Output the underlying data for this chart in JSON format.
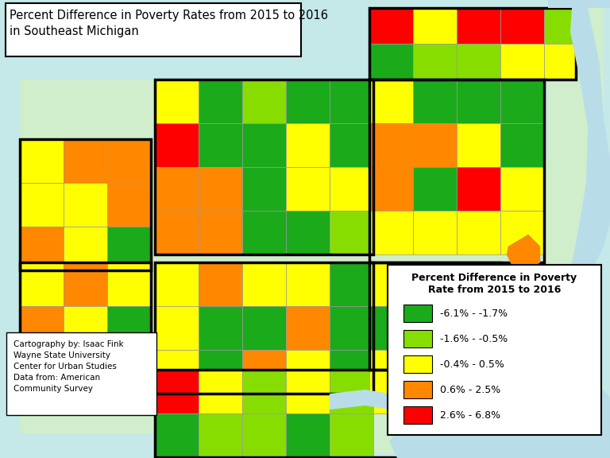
{
  "title": "Percent Difference in Poverty Rates from 2015 to 2016\nin Southeast Michigan",
  "legend_title": "Percent Difference in Poverty\nRate from 2015 to 2016",
  "legend_items": [
    {
      "label": "-6.1% - -1.7%",
      "color": "#1aaa1a"
    },
    {
      "label": "-1.6% - -0.5%",
      "color": "#88dd00"
    },
    {
      "label": "-0.4% - 0.5%",
      "color": "#ffff00"
    },
    {
      "label": "0.6% - 2.5%",
      "color": "#ff8800"
    },
    {
      "label": "2.6% - 6.8%",
      "color": "#ff0000"
    }
  ],
  "credit_text": "Cartography by: Isaac Fink\nWayne State University\nCenter for Urban Studies\nData from: American\nCommunity Survey",
  "bg_color": "#c5e8e8",
  "land_light": "#d0eecc",
  "water_color": "#b8dde8",
  "title_box_color": "#ffffff",
  "legend_box_color": "#ffffff",
  "credit_box_color": "#ffffff",
  "dg": "#1aaa1a",
  "lg": "#88dd00",
  "yy": "#ffff00",
  "og": "#ff8800",
  "rd": "#ff0000"
}
